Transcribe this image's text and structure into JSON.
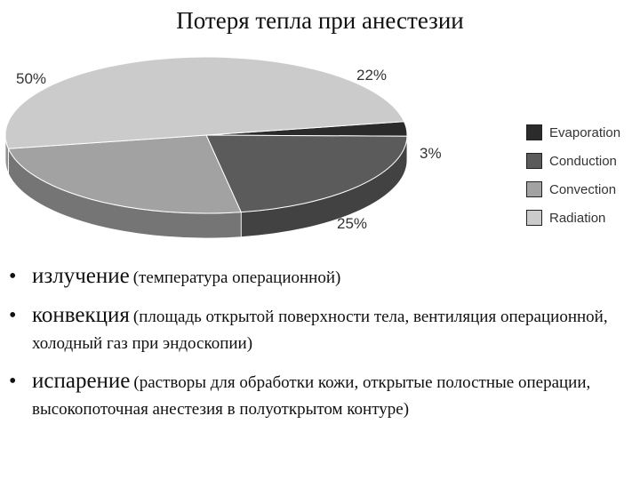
{
  "slide": {
    "title": "Потеря тепла при анестезии"
  },
  "chart_data": {
    "type": "pie",
    "title": "",
    "categories": [
      "Evaporation",
      "Conduction",
      "Convection",
      "Radiation"
    ],
    "values": [
      3,
      22,
      25,
      50
    ],
    "value_labels": [
      "3%",
      "22%",
      "25%",
      "50%"
    ],
    "colors": [
      "#2b2b2b",
      "#5b5b5b",
      "#a2a2a2",
      "#cbcbcb"
    ],
    "legend_position": "right",
    "style": "3d-tilted"
  },
  "bullets": [
    {
      "term": "излучение",
      "desc": "(температура операционной)"
    },
    {
      "term": "конвекция",
      "desc": "(площадь открытой поверхности тела, вентиляция операционной, холодный газ при эндоскопии)"
    },
    {
      "term": "испарение",
      "desc": "(растворы для обработки кожи, открытые полостные операции, высокопоточная анестезия в полуоткрытом контуре)"
    }
  ]
}
